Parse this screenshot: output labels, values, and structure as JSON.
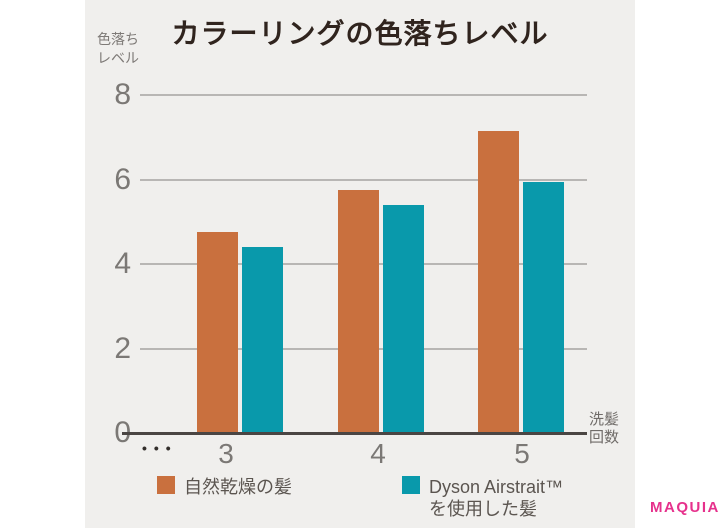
{
  "title": "カラーリングの色落ちレベル",
  "colors": {
    "page_bg": "#ffffff",
    "panel_bg": "#f0efed",
    "title_text": "#30241e",
    "grid_line": "#b8b6b4",
    "axis_line": "#4a4543",
    "tick_text": "#7b7875",
    "legend_text": "#5b5550",
    "orange": "#c9703e",
    "teal": "#0999ab",
    "logo_pink": "#e6318c",
    "ellipsis_dots": "#332e2b"
  },
  "y_axis": {
    "title_lines": [
      "色落ち",
      "レベル"
    ]
  },
  "x_axis": {
    "title_lines": [
      "洗髪",
      "回数"
    ],
    "ellipsis": "•••"
  },
  "legend": {
    "items": [
      {
        "label_lines": [
          "自然乾燥の髪"
        ],
        "color": "#c9703e"
      },
      {
        "label_lines": [
          "Dyson Airstrait™",
          "を使用した髪"
        ],
        "color": "#0999ab"
      }
    ]
  },
  "footer": {
    "logo_text": "MAQUIA"
  },
  "chart_data": {
    "type": "bar",
    "title": "カラーリングの色落ちレベル",
    "xlabel": "洗髪回数",
    "ylabel": "色落ちレベル",
    "categories": [
      "3",
      "4",
      "5"
    ],
    "x_axis_ellipsis": "lower wash counts omitted (••• shown left of first group)",
    "series": [
      {
        "name": "自然乾燥の髪",
        "color": "#c9703e",
        "values": [
          4.75,
          5.75,
          7.15
        ]
      },
      {
        "name": "Dyson Airstrait™ を使用した髪",
        "color": "#0999ab",
        "values": [
          4.4,
          5.4,
          5.95
        ]
      }
    ],
    "ylim": [
      0,
      8
    ],
    "yticks": [
      0,
      2,
      4,
      6,
      8
    ],
    "grid": true,
    "legend_position": "bottom"
  }
}
